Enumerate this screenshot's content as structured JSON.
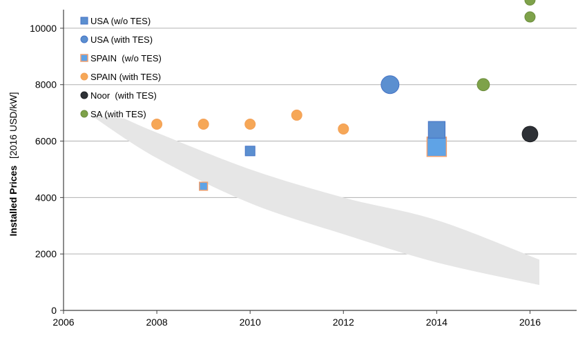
{
  "chart_data": {
    "type": "scatter",
    "title": "",
    "xlabel": "",
    "ylabel": "Installed Prices",
    "ylabel_unit": "[2016 USD/kW]",
    "xlim": [
      2006,
      2017
    ],
    "ylim": [
      0,
      11000
    ],
    "x_ticks": [
      2006,
      2008,
      2010,
      2012,
      2014,
      2016
    ],
    "y_ticks": [
      0,
      2000,
      4000,
      6000,
      8000,
      10000
    ],
    "grid": true,
    "legend_position": "top-left",
    "colors": {
      "usa": "#5b8fd0",
      "usa_edge": "#4472c4",
      "spain_fill": "#5fa3e6",
      "spain_edge": "#f0a070",
      "spain_orange": "#f6a757",
      "noor": "#2e3136",
      "sa": "#7ea24a",
      "band": "#e6e6e6",
      "grid": "#b0b0b0"
    },
    "band": {
      "upper": [
        [
          2007.3,
          6800
        ],
        [
          2008,
          6300
        ],
        [
          2010,
          5000
        ],
        [
          2012,
          4000
        ],
        [
          2014,
          3200
        ],
        [
          2016.2,
          1800
        ]
      ],
      "lower": [
        [
          2006.6,
          6900
        ],
        [
          2008,
          5400
        ],
        [
          2010,
          3800
        ],
        [
          2012,
          2700
        ],
        [
          2014,
          1700
        ],
        [
          2016.2,
          900
        ]
      ]
    },
    "series": [
      {
        "name": "USA (w/o TES)",
        "marker": "square",
        "points": [
          {
            "x": 2010,
            "y": 5650,
            "size": 1
          },
          {
            "x": 2014,
            "y": 6400,
            "size": 3
          }
        ]
      },
      {
        "name": "USA (with TES)",
        "marker": "circle",
        "points": [
          {
            "x": 2013,
            "y": 8000,
            "size": 3
          }
        ]
      },
      {
        "name": "SPAIN  (w/o TES)",
        "marker": "square",
        "points": [
          {
            "x": 2009,
            "y": 4400,
            "size": 0.7
          },
          {
            "x": 2014,
            "y": 5800,
            "size": 4
          }
        ]
      },
      {
        "name": "SPAIN (with TES)",
        "marker": "circle",
        "points": [
          {
            "x": 2008,
            "y": 6600,
            "size": 1
          },
          {
            "x": 2009,
            "y": 6600,
            "size": 1
          },
          {
            "x": 2010,
            "y": 6600,
            "size": 1
          },
          {
            "x": 2011,
            "y": 6920,
            "size": 1
          },
          {
            "x": 2012,
            "y": 6430,
            "size": 1
          }
        ]
      },
      {
        "name": "Noor  (with TES)",
        "marker": "circle",
        "points": [
          {
            "x": 2016,
            "y": 6250,
            "size": 2.3
          }
        ]
      },
      {
        "name": "SA (with TES)",
        "marker": "circle",
        "points": [
          {
            "x": 2015,
            "y": 8000,
            "size": 1.4
          },
          {
            "x": 2016,
            "y": 10400,
            "size": 1
          },
          {
            "x": 2016,
            "y": 11000,
            "size": 1
          }
        ]
      }
    ]
  }
}
